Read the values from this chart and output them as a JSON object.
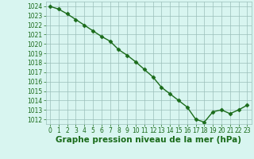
{
  "x": [
    0,
    1,
    2,
    3,
    4,
    5,
    6,
    7,
    8,
    9,
    10,
    11,
    12,
    13,
    14,
    15,
    16,
    17,
    18,
    19,
    20,
    21,
    22,
    23
  ],
  "y": [
    1024.0,
    1023.7,
    1023.2,
    1022.6,
    1022.0,
    1021.4,
    1020.8,
    1020.3,
    1019.4,
    1018.8,
    1018.1,
    1017.3,
    1016.5,
    1015.4,
    1014.7,
    1014.0,
    1013.3,
    1012.0,
    1011.7,
    1012.8,
    1013.0,
    1012.6,
    1013.0,
    1013.5
  ],
  "line_color": "#1a6b1a",
  "marker": "D",
  "marker_size": 2.5,
  "marker_color": "#1a6b1a",
  "bg_color": "#d8f5f0",
  "grid_color": "#9bbfba",
  "tick_color": "#1a6b1a",
  "xlabel": "Graphe pression niveau de la mer (hPa)",
  "xlabel_color": "#1a6b1a",
  "xlabel_fontsize": 7.5,
  "ylim_min": 1011.5,
  "ylim_max": 1024.5,
  "xlim_min": -0.5,
  "xlim_max": 23.5,
  "yticks": [
    1012,
    1013,
    1014,
    1015,
    1016,
    1017,
    1018,
    1019,
    1020,
    1021,
    1022,
    1023,
    1024
  ],
  "xticks": [
    0,
    1,
    2,
    3,
    4,
    5,
    6,
    7,
    8,
    9,
    10,
    11,
    12,
    13,
    14,
    15,
    16,
    17,
    18,
    19,
    20,
    21,
    22,
    23
  ],
  "tick_fontsize": 5.5,
  "line_width": 1.0
}
